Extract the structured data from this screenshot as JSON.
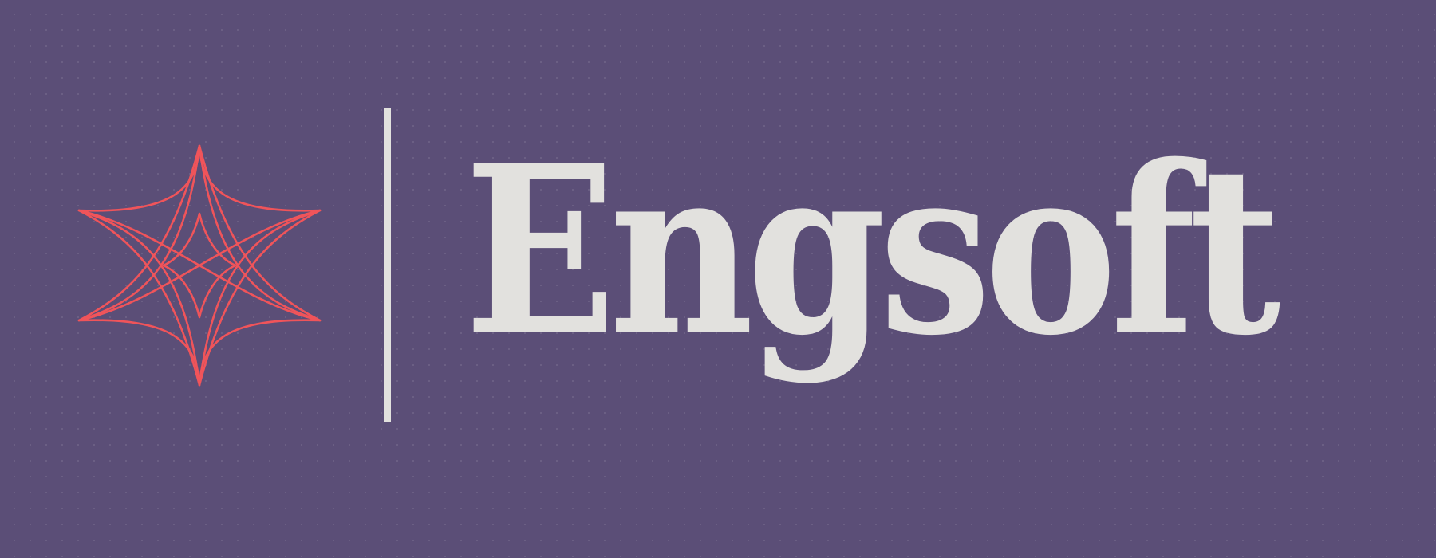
{
  "brand": {
    "name": "Engsoft",
    "icon": "star-emblem-icon"
  },
  "colors": {
    "background": "#5b4e77",
    "emblem": "#f0545a",
    "text": "#e2e1de"
  }
}
